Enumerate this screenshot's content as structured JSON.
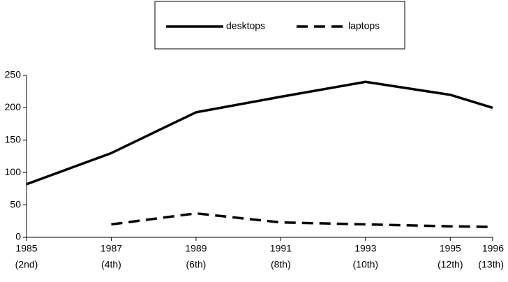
{
  "chart_data": {
    "type": "line",
    "x": [
      1985,
      1987,
      1989,
      1991,
      1993,
      1995,
      1996
    ],
    "xticks": [
      1985,
      1987,
      1989,
      1991,
      1993,
      1995,
      1996
    ],
    "xtick_sublabels": [
      "(2nd)",
      "(4th)",
      "(6th)",
      "(8th)",
      "(10th)",
      "(12th)",
      "(13th)"
    ],
    "xlim": [
      1985,
      1996
    ],
    "ylim": [
      0,
      250
    ],
    "yticks": [
      0,
      50,
      100,
      150,
      200,
      250
    ],
    "grid": false,
    "legend": "top",
    "series": [
      {
        "name": "desktops",
        "color": "#000000",
        "dash": "solid",
        "values": [
          82,
          130,
          193,
          217,
          240,
          220,
          200
        ]
      },
      {
        "name": "laptops",
        "color": "#000000",
        "dash": "dashed",
        "values": [
          null,
          20,
          37,
          23,
          20,
          17,
          16
        ]
      }
    ]
  }
}
